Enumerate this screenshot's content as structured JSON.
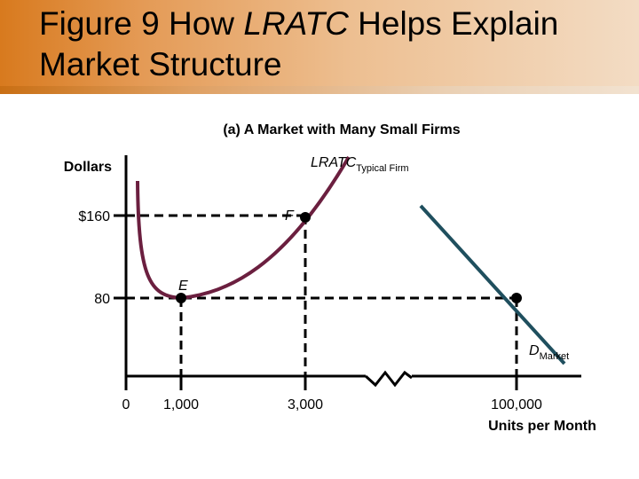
{
  "header": {
    "title_prefix": "Figure 9 How ",
    "title_italic": "LRATC",
    "title_suffix": " Helps Explain",
    "title_line2": "Market Structure"
  },
  "colors": {
    "curve_lratc": "#6b1f3f",
    "curve_demand": "#1f4f5e",
    "axis": "#000000",
    "dashed": "#000000"
  },
  "chart_data": {
    "type": "line",
    "title": "(a) A Market with Many Small Firms",
    "ylabel": "Dollars",
    "xlabel": "Units per Month",
    "x_ticks": [
      "0",
      "1,000",
      "3,000",
      "100,000"
    ],
    "y_ticks": [
      "$160",
      "80"
    ],
    "axis_break_between": [
      "3,000",
      "100,000"
    ],
    "series": [
      {
        "name": "LRATC",
        "name_subscript": "Typical Firm",
        "points": [
          [
            1000,
            80
          ],
          [
            3000,
            160
          ]
        ]
      },
      {
        "name": "D",
        "name_subscript": "Market",
        "points": [
          [
            100000,
            80
          ]
        ]
      }
    ],
    "points": [
      {
        "label": "E",
        "x": 1000,
        "y": 80
      },
      {
        "label": "F",
        "x": 3000,
        "y": 160
      }
    ]
  }
}
